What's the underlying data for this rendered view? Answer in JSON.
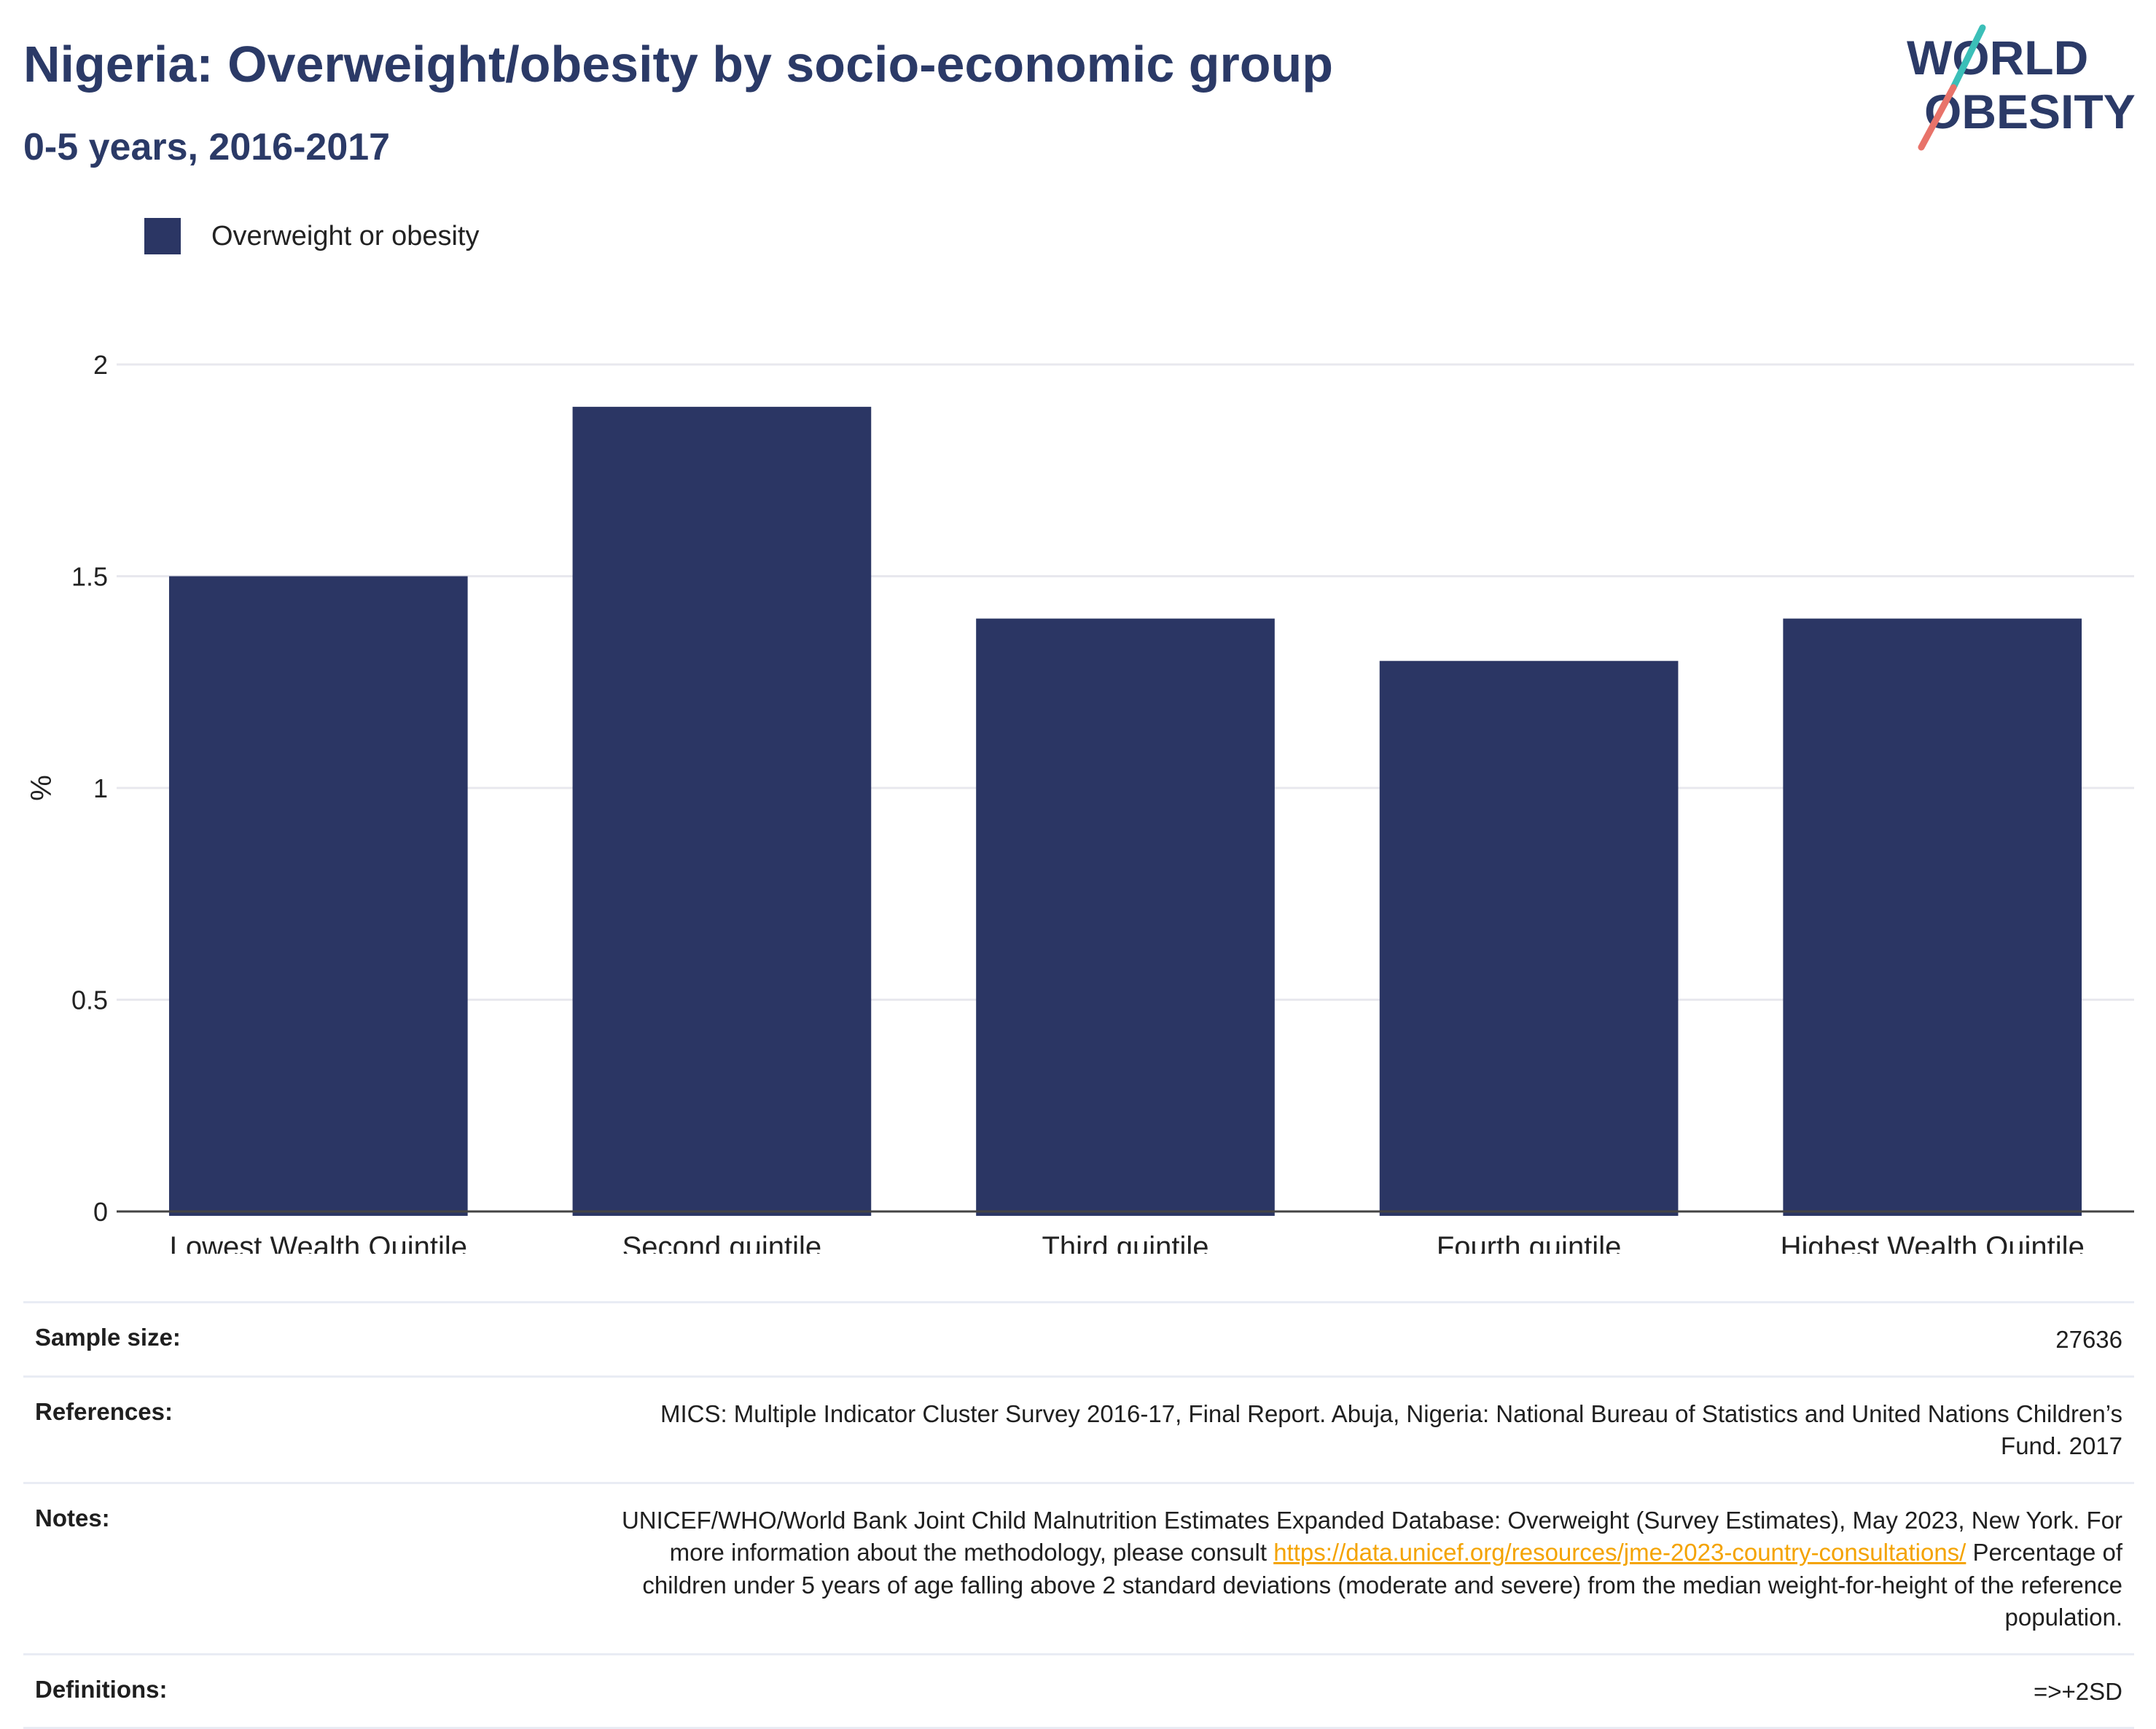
{
  "header": {
    "title": "Nigeria: Overweight/obesity by socio-economic group",
    "subtitle": "0-5 years, 2016-2017"
  },
  "logo": {
    "line1": "WORLD",
    "line2": "OBESITY",
    "colors": {
      "text": "#2b3a67",
      "slash_top": "#3bbfb8",
      "slash_bottom": "#e8736a"
    }
  },
  "legend": {
    "label": "Overweight or obesity",
    "color": "#2b3664"
  },
  "chart_data": {
    "type": "bar",
    "categories": [
      "Lowest Wealth Quintile",
      "Second quintile",
      "Third quintile",
      "Fourth quintile",
      "Highest Wealth Quintile"
    ],
    "series": [
      {
        "name": "Overweight or obesity",
        "values": [
          1.5,
          1.9,
          1.4,
          1.3,
          1.4
        ],
        "color": "#2b3664"
      }
    ],
    "ylabel": "%",
    "ylim": [
      0,
      2
    ],
    "yticks": [
      0,
      0.5,
      1,
      1.5,
      2
    ],
    "ytick_labels": [
      "0",
      "0.5",
      "1",
      "1.5",
      "2"
    ],
    "grid": true,
    "legend_position": "top-left"
  },
  "info": {
    "sample_size": {
      "key": "Sample size:",
      "value": "27636"
    },
    "references": {
      "key": "References:",
      "value": "MICS: Multiple Indicator Cluster Survey 2016-17, Final Report. Abuja, Nigeria: National Bureau of Statistics and United Nations Children’s Fund. 2017"
    },
    "notes": {
      "key": "Notes:",
      "text_before": "UNICEF/WHO/World Bank Joint Child Malnutrition Estimates Expanded Database: Overweight (Survey Estimates), May 2023, New York. For more information about the methodology, please consult ",
      "link": "https://data.unicef.org/resources/jme-2023-country-consultations/",
      "text_after": " Percentage of children under 5 years of age falling above 2 standard deviations (moderate and severe) from the median weight-for-height of the reference population."
    },
    "definitions": {
      "key": "Definitions:",
      "value": "=>+2SD"
    }
  }
}
